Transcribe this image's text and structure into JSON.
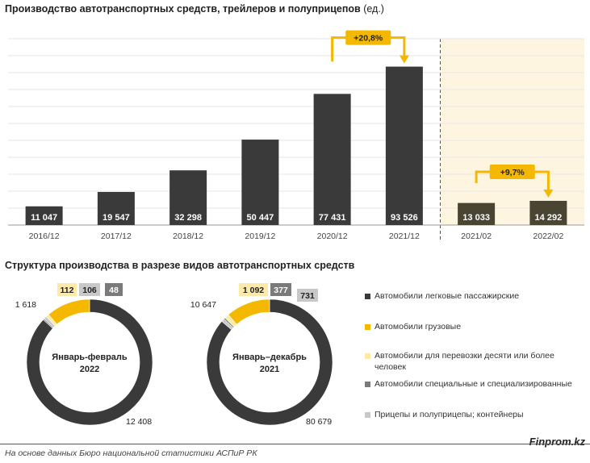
{
  "titles": {
    "bar_title": "Производство автотранспортных средств, трейлеров и полуприцепов",
    "bar_unit": "(ед.)",
    "donut_title": "Структура производства в разрезе видов автотранспортных средств"
  },
  "footer": {
    "source": "На основе данных Бюро национальной статистики АСПиР РК",
    "brand": "Finprom.kz"
  },
  "colors": {
    "bar_dark": "#3a3a3a",
    "bar_highlight": "#4a4433",
    "accent_yellow": "#f5b800",
    "highlight_bg": "#fdf5e0",
    "light_yellow": "#fde9a8",
    "light_gray": "#c8c8c8",
    "mid_gray": "#7a7a7a"
  },
  "chart_data": [
    {
      "type": "bar",
      "categories": [
        "2016/12",
        "2017/12",
        "2018/12",
        "2019/12",
        "2020/12",
        "2021/12",
        "2021/02",
        "2022/02"
      ],
      "values": [
        11047,
        19547,
        32298,
        50447,
        77431,
        93526,
        13033,
        14292
      ],
      "value_labels": [
        "11 047",
        "19 547",
        "32 298",
        "50 447",
        "77 431",
        "93 526",
        "13 033",
        "14 292"
      ],
      "title": "Производство автотранспортных средств, трейлеров и полуприцепов (ед.)",
      "ylim": [
        0,
        110000
      ],
      "grid": true,
      "annotations": [
        {
          "text": "+20,8%",
          "from": "2020/12",
          "to": "2021/12"
        },
        {
          "text": "+9,7%",
          "from": "2021/02",
          "to": "2022/02"
        }
      ],
      "highlighted_categories": [
        "2021/02",
        "2022/02"
      ]
    },
    {
      "type": "pie",
      "title": "Структура производства в разрезе видов автотранспортных средств",
      "center_label": [
        "Январь-февраль",
        "2022"
      ],
      "labels": [
        "Автомобили легковые пассажирские",
        "Автомобили грузовые",
        "Автомобили для перевозки десяти или более человек",
        "Прицепы и полуприцепы; контейнеры",
        "Автомобили специальные и специализированные"
      ],
      "values": [
        12408,
        1618,
        112,
        106,
        48
      ],
      "value_labels": [
        "12 408",
        "1 618",
        "112",
        "106",
        "48"
      ]
    },
    {
      "type": "pie",
      "title": "Структура производства в разрезе видов автотранспортных средств",
      "center_label": [
        "Январь–декабрь",
        "2021"
      ],
      "labels": [
        "Автомобили легковые пассажирские",
        "Автомобили грузовые",
        "Автомобили для перевозки десяти или более человек",
        "Автомобили специальные и специализированные",
        "Прицепы и полуприцепы; контейнеры"
      ],
      "values": [
        80679,
        10647,
        1092,
        377,
        731
      ],
      "value_labels": [
        "80 679",
        "10 647",
        "1 092",
        "377",
        "731"
      ]
    }
  ],
  "legend": [
    {
      "label": "Автомобили легковые пассажирские",
      "color": "#3a3a3a"
    },
    {
      "label": "Автомобили грузовые",
      "color": "#f5b800"
    },
    {
      "label": "Автомобили для перевозки десяти или более человек",
      "color": "#fde9a8"
    },
    {
      "label": "Автомобили специальные и специализированные",
      "color": "#7a7a7a"
    },
    {
      "label": "Прицепы и полуприцепы; контейнеры",
      "color": "#c8c8c8"
    }
  ]
}
